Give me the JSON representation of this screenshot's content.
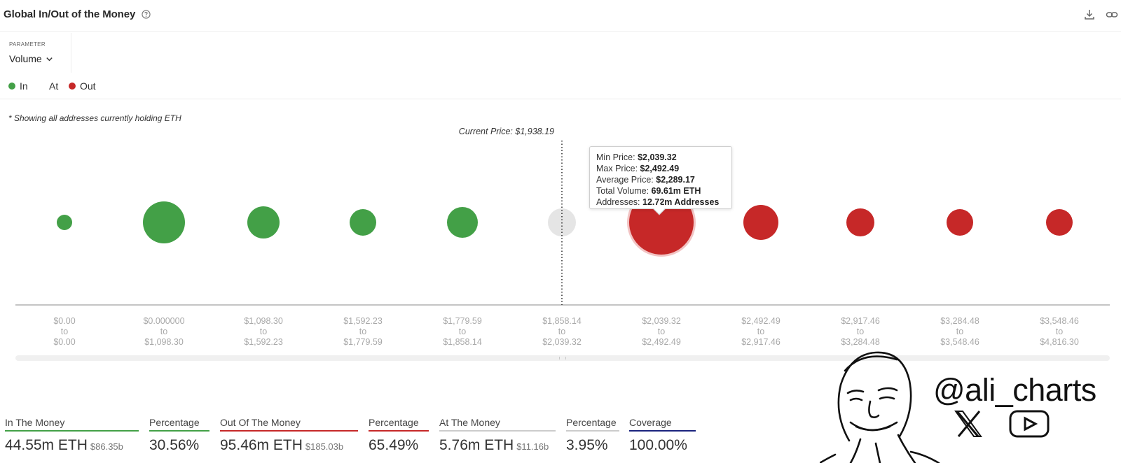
{
  "header": {
    "title": "Global In/Out of the Money"
  },
  "parameter": {
    "label": "PARAMETER",
    "value": "Volume"
  },
  "legend": [
    {
      "label": "In",
      "color": "#43a047"
    },
    {
      "label": "At",
      "color": ""
    },
    {
      "label": "Out",
      "color": "#c62828"
    }
  ],
  "note": "* Showing all addresses currently holding ETH",
  "chart_data": {
    "type": "scatter",
    "encoding": "bubble size = volume",
    "current_price_label": "Current Price: $1,938.19",
    "current_price_bucket_index": 5,
    "highlighted_bucket_index": 6,
    "buckets": [
      {
        "from": "$0.00",
        "to_word": "to",
        "to": "$0.00",
        "status": "in",
        "size": 11
      },
      {
        "from": "$0.000000",
        "to_word": "to",
        "to": "$1,098.30",
        "status": "in",
        "size": 30
      },
      {
        "from": "$1,098.30",
        "to_word": "to",
        "to": "$1,592.23",
        "status": "in",
        "size": 23
      },
      {
        "from": "$1,592.23",
        "to_word": "to",
        "to": "$1,779.59",
        "status": "in",
        "size": 19
      },
      {
        "from": "$1,779.59",
        "to_word": "to",
        "to": "$1,858.14",
        "status": "in",
        "size": 22
      },
      {
        "from": "$1,858.14",
        "to_word": "to",
        "to": "$2,039.32",
        "status": "at",
        "size": 20
      },
      {
        "from": "$2,039.32",
        "to_word": "to",
        "to": "$2,492.49",
        "status": "out",
        "size": 46
      },
      {
        "from": "$2,492.49",
        "to_word": "to",
        "to": "$2,917.46",
        "status": "out",
        "size": 25
      },
      {
        "from": "$2,917.46",
        "to_word": "to",
        "to": "$3,284.48",
        "status": "out",
        "size": 20
      },
      {
        "from": "$3,284.48",
        "to_word": "to",
        "to": "$3,548.46",
        "status": "out",
        "size": 19
      },
      {
        "from": "$3,548.46",
        "to_word": "to",
        "to": "$4,816.30",
        "status": "out",
        "size": 19
      }
    ],
    "colors": {
      "in": "#43a047",
      "at": "#e5e5e5",
      "out": "#c62828",
      "highlight_ring": "#f2c4c4"
    }
  },
  "tooltip": {
    "min_label": "Min Price:",
    "min_value": "$2,039.32",
    "max_label": "Max Price:",
    "max_value": "$2,492.49",
    "avg_label": "Average Price:",
    "avg_value": "$2,289.17",
    "vol_label": "Total Volume:",
    "vol_value": "69.61m ETH",
    "addr_label": "Addresses:",
    "addr_value": "12.72m Addresses"
  },
  "stats": [
    {
      "label": "In The Money",
      "value": "44.55m ETH",
      "sub": "$86.35b",
      "color": "#43a047"
    },
    {
      "label": "Percentage",
      "value": "30.56%",
      "sub": "",
      "color": "#43a047"
    },
    {
      "label": "Out Of The Money",
      "value": "95.46m ETH",
      "sub": "$185.03b",
      "color": "#c62828"
    },
    {
      "label": "Percentage",
      "value": "65.49%",
      "sub": "",
      "color": "#c62828"
    },
    {
      "label": "At The Money",
      "value": "5.76m ETH",
      "sub": "$11.16b",
      "color": "#cccccc"
    },
    {
      "label": "Percentage",
      "value": "3.95%",
      "sub": "",
      "color": "#cccccc"
    },
    {
      "label": "Coverage",
      "value": "100.00%",
      "sub": "",
      "color": "#1a237e"
    }
  ],
  "branding": {
    "handle": "@ali_charts",
    "icons": [
      "x-logo-icon",
      "youtube-icon"
    ]
  }
}
